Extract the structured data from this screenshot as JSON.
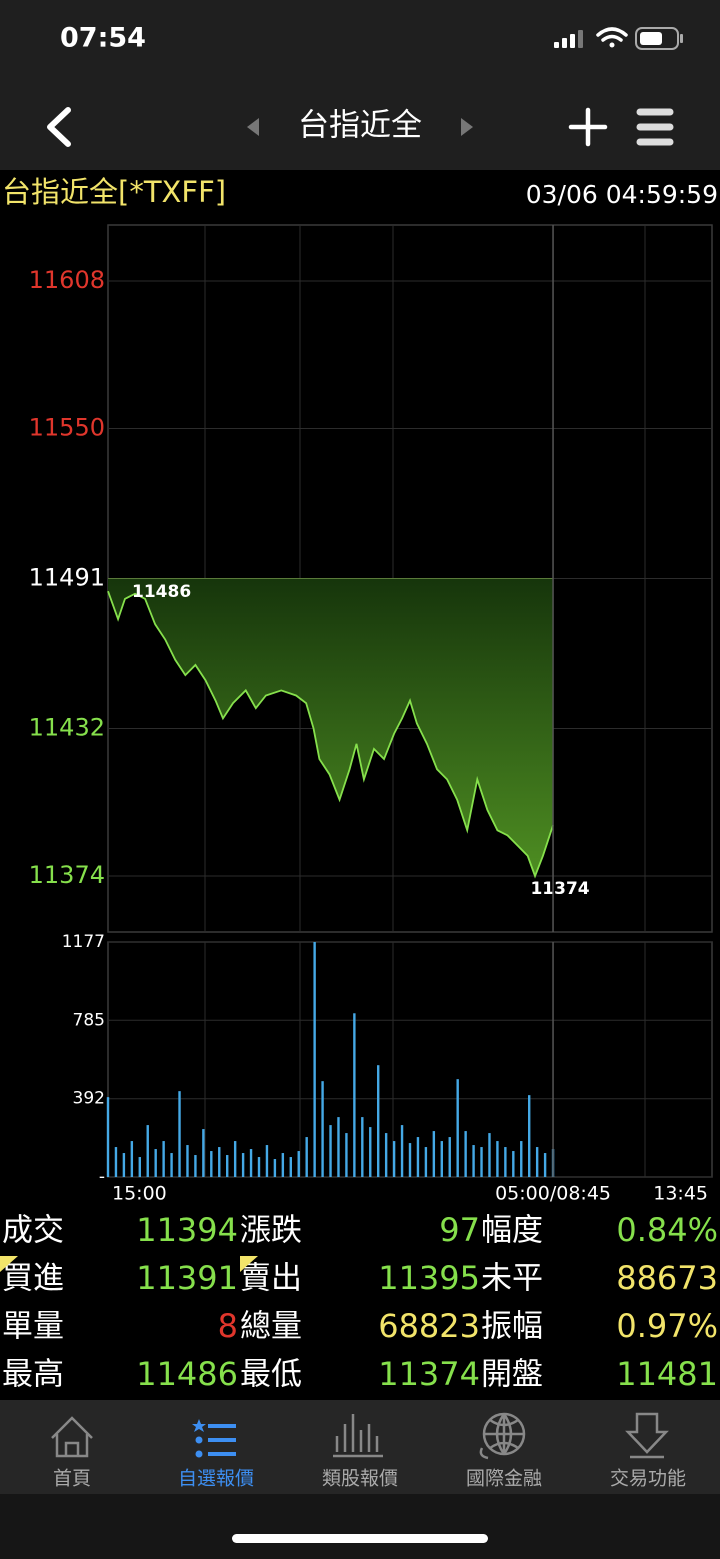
{
  "status_bar": {
    "time": "07:54"
  },
  "nav": {
    "title": "台指近全"
  },
  "instrument": {
    "name": "台指近全[*TXFF]",
    "timestamp": "03/06 04:59:59"
  },
  "chart_data": [
    {
      "type": "area",
      "x": [
        0,
        19,
        32,
        51,
        70,
        89,
        108,
        127,
        146,
        165,
        184,
        203,
        217,
        236,
        260,
        279,
        298,
        327,
        355,
        374,
        388,
        399,
        418,
        437,
        456,
        469,
        483,
        502,
        521,
        540,
        555,
        570,
        583,
        602,
        621,
        640,
        659,
        678,
        697,
        716,
        735,
        754,
        773,
        792,
        806,
        821,
        840
      ],
      "values": [
        11486,
        11475,
        11483,
        11485,
        11483,
        11473,
        11467,
        11459,
        11453,
        11457,
        11451,
        11443,
        11436,
        11442,
        11447,
        11440,
        11445,
        11447,
        11445,
        11442,
        11432,
        11420,
        11414,
        11404,
        11416,
        11426,
        11412,
        11424,
        11420,
        11430,
        11436,
        11443,
        11434,
        11426,
        11416,
        11412,
        11404,
        11392,
        11412,
        11400,
        11392,
        11390,
        11386,
        11382,
        11374,
        11382,
        11394
      ],
      "color": "#86e04c",
      "fill_top": "#16350b",
      "fill_bottom": "#4e8e22",
      "reference_line": 11491,
      "up_color": "#e0362c",
      "down_color": "#86e04c",
      "flat_color": "#ffffff",
      "xlim": [
        0,
        1140
      ],
      "ylim": [
        11352,
        11630
      ],
      "yticks": [
        11608,
        11550,
        11491,
        11432,
        11374
      ],
      "grid": true,
      "annotations": [
        {
          "text": "11486",
          "x": 0,
          "y": 11486
        },
        {
          "text": "11374",
          "x": 806,
          "y": 11374
        }
      ]
    },
    {
      "type": "bar",
      "x": [
        0,
        15,
        30,
        45,
        60,
        75,
        90,
        105,
        120,
        135,
        150,
        165,
        180,
        195,
        210,
        225,
        240,
        255,
        270,
        285,
        300,
        315,
        330,
        345,
        360,
        375,
        390,
        405,
        420,
        435,
        450,
        465,
        480,
        495,
        510,
        525,
        540,
        555,
        570,
        585,
        600,
        615,
        630,
        645,
        660,
        675,
        690,
        705,
        720,
        735,
        750,
        765,
        780,
        795,
        810,
        825,
        840
      ],
      "values": [
        400,
        150,
        120,
        180,
        100,
        260,
        140,
        180,
        120,
        430,
        160,
        110,
        240,
        130,
        150,
        110,
        180,
        120,
        140,
        100,
        160,
        90,
        120,
        100,
        130,
        200,
        1177,
        480,
        260,
        300,
        220,
        820,
        300,
        250,
        560,
        220,
        180,
        260,
        170,
        200,
        150,
        230,
        180,
        200,
        490,
        230,
        160,
        150,
        220,
        180,
        150,
        130,
        180,
        410,
        150,
        120,
        140
      ],
      "color": "#45a9e6",
      "xlim": [
        0,
        1140
      ],
      "ylim": [
        0,
        1177
      ],
      "yticks": [
        {
          "value": 0,
          "label": "-"
        },
        392,
        785,
        1177
      ],
      "xticks": [
        {
          "value": 0,
          "label": "15:00"
        },
        {
          "value": 840,
          "label": "05:00/08:45"
        },
        {
          "value": 1140,
          "label": "13:45"
        }
      ],
      "grid": true
    }
  ],
  "quote_table": {
    "rows": [
      [
        {
          "label": "成交",
          "value": "11394",
          "color": "#86e04c"
        },
        {
          "label": "漲跌",
          "value": "97",
          "color": "#86e04c"
        },
        {
          "label": "幅度",
          "value": "0.84%",
          "color": "#86e04c"
        }
      ],
      [
        {
          "label": "買進",
          "value": "11391",
          "color": "#86e04c"
        },
        {
          "label": "賣出",
          "value": "11395",
          "color": "#86e04c"
        },
        {
          "label": "未平",
          "value": "88673",
          "color": "#f2e46a"
        }
      ],
      [
        {
          "label": "單量",
          "value": "8",
          "color": "#e0362c"
        },
        {
          "label": "總量",
          "value": "68823",
          "color": "#f2e46a"
        },
        {
          "label": "振幅",
          "value": "0.97%",
          "color": "#f2e46a"
        }
      ],
      [
        {
          "label": "最高",
          "value": "11486",
          "color": "#86e04c"
        },
        {
          "label": "最低",
          "value": "11374",
          "color": "#86e04c"
        },
        {
          "label": "開盤",
          "value": "11481",
          "color": "#86e04c"
        }
      ]
    ]
  },
  "tab_bar": {
    "active": 1,
    "tabs": [
      {
        "label": "首頁"
      },
      {
        "label": "自選報價"
      },
      {
        "label": "類股報價"
      },
      {
        "label": "國際金融"
      },
      {
        "label": "交易功能"
      }
    ]
  }
}
